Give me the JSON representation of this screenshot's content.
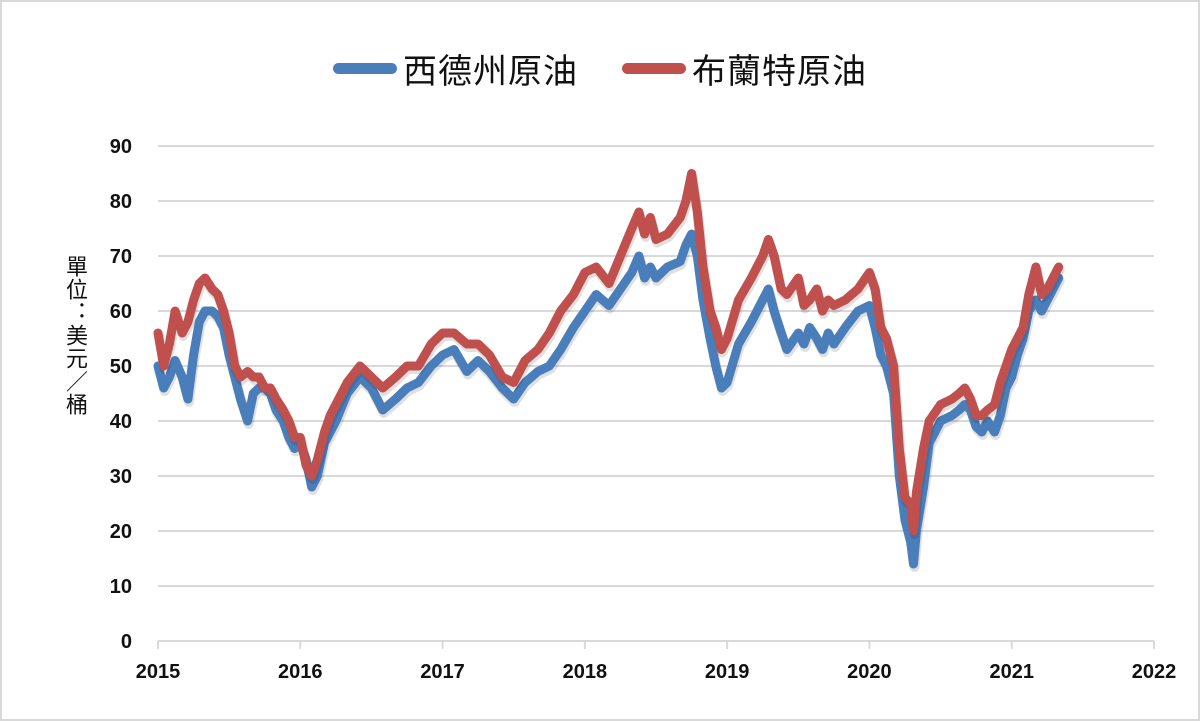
{
  "chart_data": {
    "type": "line",
    "title": "",
    "xlabel": "",
    "ylabel": "單位：美元／桶",
    "xlim": [
      2015,
      2022
    ],
    "ylim": [
      0,
      90
    ],
    "grid": true,
    "legend_position": "top",
    "x_ticks": [
      "2015",
      "2016",
      "2017",
      "2018",
      "2019",
      "2020",
      "2021",
      "2022"
    ],
    "y_ticks": [
      0,
      10,
      20,
      30,
      40,
      50,
      60,
      70,
      80,
      90
    ],
    "x": [
      2015.0,
      2015.04,
      2015.08,
      2015.12,
      2015.17,
      2015.21,
      2015.25,
      2015.29,
      2015.33,
      2015.38,
      2015.42,
      2015.46,
      2015.5,
      2015.54,
      2015.58,
      2015.63,
      2015.67,
      2015.71,
      2015.75,
      2015.79,
      2015.83,
      2015.88,
      2015.92,
      2015.96,
      2016.0,
      2016.04,
      2016.08,
      2016.12,
      2016.17,
      2016.21,
      2016.25,
      2016.33,
      2016.42,
      2016.5,
      2016.58,
      2016.67,
      2016.75,
      2016.83,
      2016.92,
      2017.0,
      2017.08,
      2017.17,
      2017.25,
      2017.33,
      2017.42,
      2017.5,
      2017.58,
      2017.67,
      2017.75,
      2017.83,
      2017.92,
      2018.0,
      2018.08,
      2018.17,
      2018.25,
      2018.33,
      2018.38,
      2018.42,
      2018.46,
      2018.5,
      2018.58,
      2018.67,
      2018.71,
      2018.75,
      2018.79,
      2018.83,
      2018.88,
      2018.92,
      2018.96,
      2019.0,
      2019.08,
      2019.17,
      2019.25,
      2019.29,
      2019.33,
      2019.38,
      2019.42,
      2019.5,
      2019.54,
      2019.58,
      2019.63,
      2019.67,
      2019.71,
      2019.75,
      2019.83,
      2019.92,
      2020.0,
      2020.04,
      2020.08,
      2020.12,
      2020.17,
      2020.21,
      2020.25,
      2020.29,
      2020.31,
      2020.33,
      2020.38,
      2020.42,
      2020.5,
      2020.58,
      2020.63,
      2020.67,
      2020.71,
      2020.75,
      2020.79,
      2020.83,
      2020.88,
      2020.92,
      2020.96,
      2021.0,
      2021.04,
      2021.08,
      2021.12,
      2021.17,
      2021.21,
      2021.25,
      2021.29,
      2021.33
    ],
    "series": [
      {
        "name": "西德州原油",
        "color": "#4a7ebb",
        "values": [
          50,
          46,
          48,
          51,
          48,
          44,
          52,
          58,
          60,
          60,
          59,
          57,
          52,
          48,
          44,
          40,
          45,
          46,
          46,
          45,
          42,
          40,
          37,
          35,
          36,
          33,
          28,
          30,
          36,
          38,
          40,
          45,
          48,
          46,
          42,
          44,
          46,
          47,
          50,
          52,
          53,
          49,
          51,
          49,
          46,
          44,
          47,
          49,
          50,
          53,
          57,
          60,
          63,
          61,
          64,
          67,
          70,
          66,
          68,
          66,
          68,
          69,
          72,
          74,
          70,
          62,
          55,
          50,
          46,
          47,
          54,
          58,
          62,
          64,
          60,
          56,
          53,
          56,
          54,
          57,
          55,
          53,
          56,
          54,
          57,
          60,
          61,
          57,
          52,
          50,
          45,
          30,
          22,
          18,
          14,
          20,
          28,
          36,
          40,
          41,
          42,
          43,
          42,
          39,
          38,
          40,
          38,
          41,
          46,
          48,
          52,
          55,
          60,
          62,
          60,
          62,
          64,
          66
        ]
      },
      {
        "name": "布蘭特原油",
        "color": "#c0504d",
        "values": [
          56,
          50,
          54,
          60,
          56,
          58,
          62,
          65,
          66,
          64,
          63,
          60,
          56,
          50,
          48,
          49,
          48,
          48,
          46,
          46,
          44,
          42,
          40,
          37,
          37,
          32,
          30,
          33,
          38,
          41,
          43,
          47,
          50,
          48,
          46,
          48,
          50,
          50,
          54,
          56,
          56,
          54,
          54,
          52,
          48,
          47,
          51,
          53,
          56,
          60,
          63,
          67,
          68,
          65,
          70,
          75,
          78,
          74,
          77,
          73,
          74,
          77,
          80,
          85,
          78,
          68,
          60,
          57,
          53,
          55,
          62,
          66,
          70,
          73,
          70,
          64,
          63,
          66,
          61,
          62,
          64,
          60,
          62,
          61,
          62,
          64,
          67,
          64,
          57,
          55,
          50,
          35,
          26,
          25,
          20,
          27,
          35,
          40,
          43,
          44,
          45,
          46,
          44,
          41,
          41,
          42,
          43,
          47,
          50,
          53,
          55,
          57,
          63,
          68,
          63,
          64,
          66,
          68
        ]
      }
    ]
  },
  "legend": {
    "items": [
      {
        "label": "西德州原油",
        "color": "#4a7ebb"
      },
      {
        "label": "布蘭特原油",
        "color": "#c0504d"
      }
    ]
  },
  "axis": {
    "y_title": "單位：美元／桶"
  },
  "colors": {
    "grid": "#d9d9d9",
    "frame": "#d9d9d9",
    "text": "#111111"
  }
}
